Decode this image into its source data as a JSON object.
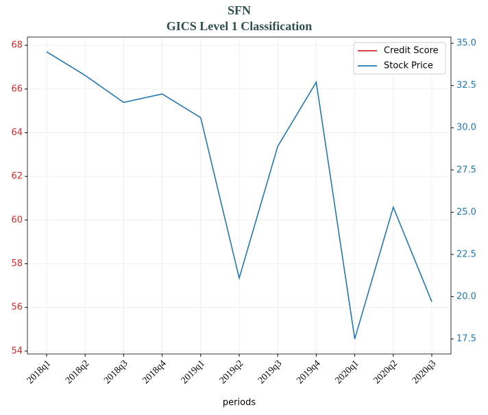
{
  "chart_data": {
    "type": "line",
    "title": "SFN",
    "subtitle": "GICS Level 1 Classification",
    "x_label": "periods",
    "categories": [
      "2018q1",
      "2018q2",
      "2018q3",
      "2018q4",
      "2019q1",
      "2019q2",
      "2019q3",
      "2019q4",
      "2020q1",
      "2020q2",
      "2020q3"
    ],
    "series": [
      {
        "name": "Credit Score",
        "color": "#d62728",
        "values": [
          null,
          null,
          null,
          null,
          null,
          null,
          null,
          null,
          null,
          null,
          null
        ]
      },
      {
        "name": "Stock Price",
        "color": "#1f77b4",
        "axis": "y2",
        "values": [
          34.5,
          33.1,
          31.5,
          32.0,
          30.6,
          21.1,
          28.9,
          32.7,
          17.5,
          25.3,
          19.7
        ]
      }
    ],
    "ylim": [
      53.87,
      68.38
    ],
    "yticks": [
      54,
      56,
      58,
      60,
      62,
      64,
      66,
      68
    ],
    "y2lim": [
      16.61,
      35.37
    ],
    "y2ticks": [
      17.5,
      {
        "value": 20,
        "label": "20.0"
      },
      22.5,
      {
        "value": 25,
        "label": "25.0"
      },
      27.5,
      {
        "value": 30,
        "label": "30.0"
      },
      32.5,
      {
        "value": 35,
        "label": "35.0"
      }
    ],
    "grid": true,
    "legend": "upper right"
  }
}
